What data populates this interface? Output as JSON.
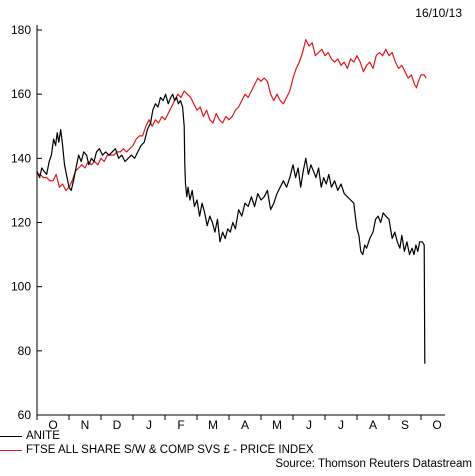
{
  "header": {
    "date": "16/10/13"
  },
  "source": "Source: Thomson Reuters Datastream",
  "colors": {
    "anite": "#000000",
    "ftse": "#e0191d"
  },
  "chart_data": {
    "type": "line",
    "ylim": [
      60,
      180
    ],
    "yticks": [
      60,
      80,
      100,
      120,
      140,
      160,
      180
    ],
    "x_range": [
      0,
      12.75
    ],
    "months": [
      "O",
      "N",
      "D",
      "J",
      "F",
      "M",
      "A",
      "M",
      "J",
      "J",
      "A",
      "S",
      "O"
    ],
    "grid": false,
    "legend_position": "bottom-left",
    "series": [
      {
        "name": "ANITE",
        "color": "#000000",
        "points": [
          [
            0.0,
            136
          ],
          [
            0.08,
            134
          ],
          [
            0.15,
            137
          ],
          [
            0.22,
            136
          ],
          [
            0.3,
            135
          ],
          [
            0.38,
            139
          ],
          [
            0.45,
            141
          ],
          [
            0.52,
            146
          ],
          [
            0.58,
            144
          ],
          [
            0.63,
            148
          ],
          [
            0.68,
            145
          ],
          [
            0.74,
            149
          ],
          [
            0.8,
            144
          ],
          [
            0.86,
            138
          ],
          [
            0.92,
            135
          ],
          [
            1.0,
            131
          ],
          [
            1.07,
            130
          ],
          [
            1.14,
            133
          ],
          [
            1.22,
            137
          ],
          [
            1.3,
            141
          ],
          [
            1.38,
            139
          ],
          [
            1.46,
            142
          ],
          [
            1.55,
            141
          ],
          [
            1.62,
            138
          ],
          [
            1.7,
            140
          ],
          [
            1.78,
            139
          ],
          [
            1.86,
            142
          ],
          [
            1.95,
            143
          ],
          [
            2.05,
            141
          ],
          [
            2.15,
            142
          ],
          [
            2.25,
            141
          ],
          [
            2.35,
            142
          ],
          [
            2.45,
            143
          ],
          [
            2.55,
            140
          ],
          [
            2.65,
            141
          ],
          [
            2.75,
            139
          ],
          [
            2.85,
            140
          ],
          [
            2.95,
            141
          ],
          [
            3.05,
            140
          ],
          [
            3.15,
            142
          ],
          [
            3.25,
            144
          ],
          [
            3.35,
            145
          ],
          [
            3.45,
            149
          ],
          [
            3.55,
            151
          ],
          [
            3.62,
            155
          ],
          [
            3.7,
            157
          ],
          [
            3.78,
            156
          ],
          [
            3.86,
            159
          ],
          [
            3.94,
            158
          ],
          [
            4.02,
            160
          ],
          [
            4.1,
            157
          ],
          [
            4.18,
            159
          ],
          [
            4.24,
            160
          ],
          [
            4.3,
            158
          ],
          [
            4.36,
            159
          ],
          [
            4.42,
            157
          ],
          [
            4.48,
            158
          ],
          [
            4.55,
            156
          ],
          [
            4.6,
            150
          ],
          [
            4.62,
            138
          ],
          [
            4.64,
            132
          ],
          [
            4.68,
            128
          ],
          [
            4.72,
            131
          ],
          [
            4.78,
            127
          ],
          [
            4.85,
            130
          ],
          [
            4.92,
            125
          ],
          [
            5.0,
            127
          ],
          [
            5.08,
            122
          ],
          [
            5.16,
            126
          ],
          [
            5.24,
            123
          ],
          [
            5.32,
            119
          ],
          [
            5.4,
            122
          ],
          [
            5.48,
            120
          ],
          [
            5.56,
            117
          ],
          [
            5.64,
            121
          ],
          [
            5.72,
            114
          ],
          [
            5.8,
            117
          ],
          [
            5.88,
            115
          ],
          [
            5.96,
            118
          ],
          [
            6.04,
            117
          ],
          [
            6.12,
            120
          ],
          [
            6.2,
            118
          ],
          [
            6.3,
            124
          ],
          [
            6.4,
            122
          ],
          [
            6.5,
            126
          ],
          [
            6.6,
            125
          ],
          [
            6.7,
            128
          ],
          [
            6.8,
            125
          ],
          [
            6.9,
            129
          ],
          [
            7.0,
            127
          ],
          [
            7.1,
            128
          ],
          [
            7.2,
            130
          ],
          [
            7.3,
            124
          ],
          [
            7.4,
            126
          ],
          [
            7.5,
            129
          ],
          [
            7.6,
            131
          ],
          [
            7.7,
            133
          ],
          [
            7.8,
            131
          ],
          [
            7.9,
            134
          ],
          [
            8.0,
            138
          ],
          [
            8.08,
            134
          ],
          [
            8.16,
            137
          ],
          [
            8.24,
            131
          ],
          [
            8.32,
            136
          ],
          [
            8.4,
            140
          ],
          [
            8.48,
            135
          ],
          [
            8.56,
            138
          ],
          [
            8.64,
            136
          ],
          [
            8.72,
            134
          ],
          [
            8.8,
            137
          ],
          [
            8.88,
            131
          ],
          [
            8.96,
            134
          ],
          [
            9.04,
            132
          ],
          [
            9.12,
            135
          ],
          [
            9.2,
            131
          ],
          [
            9.3,
            133
          ],
          [
            9.4,
            130
          ],
          [
            9.5,
            132
          ],
          [
            9.6,
            129
          ],
          [
            9.7,
            128
          ],
          [
            9.8,
            127
          ],
          [
            9.9,
            126
          ],
          [
            9.96,
            121
          ],
          [
            10.0,
            118
          ],
          [
            10.06,
            116
          ],
          [
            10.12,
            111
          ],
          [
            10.18,
            110
          ],
          [
            10.24,
            113
          ],
          [
            10.3,
            112
          ],
          [
            10.4,
            115
          ],
          [
            10.5,
            117
          ],
          [
            10.58,
            121
          ],
          [
            10.66,
            122
          ],
          [
            10.74,
            120
          ],
          [
            10.82,
            123
          ],
          [
            10.9,
            122
          ],
          [
            11.0,
            121
          ],
          [
            11.1,
            115
          ],
          [
            11.18,
            117
          ],
          [
            11.26,
            114
          ],
          [
            11.34,
            112
          ],
          [
            11.4,
            116
          ],
          [
            11.48,
            111
          ],
          [
            11.56,
            114
          ],
          [
            11.64,
            110
          ],
          [
            11.72,
            112
          ],
          [
            11.78,
            110
          ],
          [
            11.84,
            113
          ],
          [
            11.9,
            111
          ],
          [
            11.96,
            114
          ],
          [
            12.04,
            114
          ],
          [
            12.1,
            113
          ],
          [
            12.12,
            76
          ]
        ]
      },
      {
        "name": "FTSE ALL SHARE S/W & COMP SVS £ - PRICE INDEX",
        "color": "#e0191d",
        "points": [
          [
            0.0,
            135
          ],
          [
            0.1,
            135
          ],
          [
            0.2,
            134
          ],
          [
            0.3,
            134
          ],
          [
            0.4,
            133
          ],
          [
            0.5,
            133
          ],
          [
            0.6,
            135
          ],
          [
            0.7,
            131
          ],
          [
            0.8,
            132
          ],
          [
            0.9,
            130
          ],
          [
            1.0,
            131
          ],
          [
            1.1,
            133
          ],
          [
            1.2,
            136
          ],
          [
            1.3,
            137
          ],
          [
            1.4,
            138
          ],
          [
            1.5,
            137
          ],
          [
            1.6,
            139
          ],
          [
            1.7,
            138
          ],
          [
            1.8,
            139
          ],
          [
            1.9,
            138
          ],
          [
            2.0,
            140
          ],
          [
            2.1,
            139
          ],
          [
            2.2,
            141
          ],
          [
            2.3,
            141
          ],
          [
            2.4,
            141
          ],
          [
            2.5,
            142
          ],
          [
            2.6,
            142
          ],
          [
            2.7,
            143
          ],
          [
            2.8,
            142
          ],
          [
            2.9,
            143
          ],
          [
            3.0,
            144
          ],
          [
            3.1,
            146
          ],
          [
            3.2,
            147
          ],
          [
            3.3,
            147
          ],
          [
            3.4,
            150
          ],
          [
            3.5,
            152
          ],
          [
            3.6,
            150
          ],
          [
            3.7,
            152
          ],
          [
            3.8,
            151
          ],
          [
            3.9,
            153
          ],
          [
            4.0,
            152
          ],
          [
            4.1,
            154
          ],
          [
            4.2,
            156
          ],
          [
            4.3,
            158
          ],
          [
            4.4,
            160
          ],
          [
            4.5,
            159
          ],
          [
            4.6,
            161
          ],
          [
            4.7,
            160
          ],
          [
            4.8,
            159
          ],
          [
            4.9,
            157
          ],
          [
            5.0,
            155
          ],
          [
            5.1,
            156
          ],
          [
            5.2,
            153
          ],
          [
            5.3,
            155
          ],
          [
            5.4,
            152
          ],
          [
            5.5,
            151
          ],
          [
            5.6,
            154
          ],
          [
            5.7,
            152
          ],
          [
            5.8,
            151
          ],
          [
            5.9,
            153
          ],
          [
            6.0,
            152
          ],
          [
            6.1,
            153
          ],
          [
            6.2,
            155
          ],
          [
            6.3,
            156
          ],
          [
            6.4,
            158
          ],
          [
            6.5,
            160
          ],
          [
            6.6,
            159
          ],
          [
            6.7,
            161
          ],
          [
            6.8,
            163
          ],
          [
            6.9,
            165
          ],
          [
            7.0,
            164
          ],
          [
            7.1,
            165
          ],
          [
            7.2,
            164
          ],
          [
            7.3,
            160
          ],
          [
            7.4,
            158
          ],
          [
            7.5,
            160
          ],
          [
            7.6,
            158
          ],
          [
            7.7,
            157
          ],
          [
            7.8,
            159
          ],
          [
            7.9,
            161
          ],
          [
            8.0,
            165
          ],
          [
            8.1,
            168
          ],
          [
            8.2,
            170
          ],
          [
            8.3,
            173
          ],
          [
            8.4,
            177
          ],
          [
            8.5,
            175
          ],
          [
            8.6,
            176
          ],
          [
            8.7,
            172
          ],
          [
            8.8,
            173
          ],
          [
            8.9,
            174
          ],
          [
            9.0,
            172
          ],
          [
            9.1,
            173
          ],
          [
            9.2,
            171
          ],
          [
            9.3,
            170
          ],
          [
            9.4,
            171
          ],
          [
            9.5,
            169
          ],
          [
            9.6,
            170
          ],
          [
            9.7,
            168
          ],
          [
            9.8,
            171
          ],
          [
            9.9,
            170
          ],
          [
            10.0,
            172
          ],
          [
            10.1,
            170
          ],
          [
            10.2,
            167
          ],
          [
            10.3,
            169
          ],
          [
            10.4,
            170
          ],
          [
            10.5,
            168
          ],
          [
            10.6,
            172
          ],
          [
            10.7,
            173
          ],
          [
            10.8,
            172
          ],
          [
            10.9,
            174
          ],
          [
            11.0,
            172
          ],
          [
            11.1,
            173
          ],
          [
            11.2,
            170
          ],
          [
            11.3,
            168
          ],
          [
            11.4,
            169
          ],
          [
            11.5,
            167
          ],
          [
            11.6,
            165
          ],
          [
            11.7,
            166
          ],
          [
            11.8,
            163
          ],
          [
            11.86,
            162
          ],
          [
            11.92,
            164
          ],
          [
            12.0,
            166
          ],
          [
            12.1,
            166
          ],
          [
            12.16,
            165
          ]
        ]
      }
    ]
  }
}
